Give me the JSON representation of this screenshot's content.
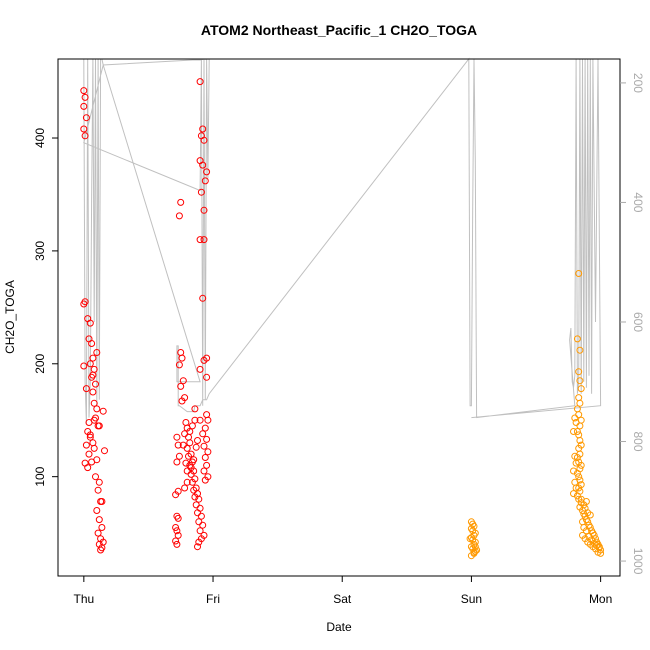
{
  "chart_data": {
    "type": "scatter",
    "title": "ATOM2 Northeast_Pacific_1 CH2O_TOGA",
    "xlabel": "Date",
    "ylabel": "CH2O_TOGA",
    "x_ticks": [
      "Thu",
      "Fri",
      "Sat",
      "Sun",
      "Mon"
    ],
    "xlim": [
      -0.2,
      4.15
    ],
    "ylim": [
      12,
      470
    ],
    "y_ticks": [
      100,
      200,
      300,
      400
    ],
    "y2_ticks": [
      200,
      400,
      600,
      800,
      1000
    ],
    "y2lim": [
      1025,
      160
    ],
    "grid": false,
    "legend": "none",
    "colors": {
      "series1": "#ff0000",
      "series2": "#ff9900",
      "pressure_line": "#c0c0c0",
      "axis": "#000000",
      "right_axis": "#aaaaaa"
    },
    "series": [
      {
        "values": [
          [
            0.0,
            442
          ],
          [
            0.01,
            436
          ],
          [
            0.0,
            428
          ],
          [
            0.02,
            418
          ],
          [
            0.0,
            408
          ],
          [
            0.01,
            402
          ],
          [
            0.0,
            253
          ],
          [
            0.01,
            255
          ],
          [
            0.03,
            240
          ],
          [
            0.05,
            236
          ],
          [
            0.04,
            222
          ],
          [
            0.06,
            218
          ],
          [
            0.07,
            205
          ],
          [
            0.05,
            200
          ],
          [
            0.08,
            195
          ],
          [
            0.06,
            188
          ],
          [
            0.09,
            182
          ],
          [
            0.07,
            175
          ],
          [
            0.08,
            165
          ],
          [
            0.1,
            160
          ],
          [
            0.09,
            152
          ],
          [
            0.11,
            145
          ],
          [
            0.03,
            140
          ],
          [
            0.05,
            135
          ],
          [
            0.07,
            130
          ],
          [
            0.02,
            128
          ],
          [
            0.08,
            125
          ],
          [
            0.04,
            120
          ],
          [
            0.1,
            115
          ],
          [
            0.06,
            113
          ],
          [
            0.03,
            108
          ],
          [
            0.09,
            100
          ],
          [
            0.12,
            95
          ],
          [
            0.11,
            88
          ],
          [
            0.13,
            78
          ],
          [
            0.1,
            70
          ],
          [
            0.12,
            62
          ],
          [
            0.14,
            55
          ],
          [
            0.11,
            50
          ],
          [
            0.13,
            45
          ],
          [
            0.12,
            40
          ],
          [
            0.14,
            37
          ],
          [
            0.13,
            35
          ],
          [
            0.15,
            42
          ],
          [
            0.14,
            78
          ],
          [
            0.16,
            123
          ],
          [
            0.15,
            158
          ],
          [
            0.12,
            145
          ],
          [
            0.0,
            198
          ],
          [
            0.02,
            178
          ],
          [
            0.08,
            150
          ],
          [
            0.05,
            137
          ],
          [
            0.1,
            210
          ],
          [
            0.07,
            190
          ],
          [
            0.01,
            112
          ],
          [
            0.04,
            148
          ],
          [
            0.9,
            450
          ],
          [
            0.92,
            408
          ],
          [
            0.91,
            402
          ],
          [
            0.93,
            398
          ],
          [
            0.9,
            380
          ],
          [
            0.92,
            376
          ],
          [
            0.95,
            370
          ],
          [
            0.94,
            362
          ],
          [
            0.91,
            352
          ],
          [
            0.93,
            336
          ],
          [
            0.75,
            343
          ],
          [
            0.74,
            331
          ],
          [
            0.9,
            310
          ],
          [
            0.93,
            310
          ],
          [
            0.92,
            258
          ],
          [
            0.95,
            205
          ],
          [
            0.93,
            203
          ],
          [
            0.9,
            195
          ],
          [
            0.95,
            188
          ],
          [
            0.75,
            210
          ],
          [
            0.76,
            205
          ],
          [
            0.74,
            199
          ],
          [
            0.77,
            185
          ],
          [
            0.75,
            180
          ],
          [
            0.78,
            170
          ],
          [
            0.76,
            167
          ],
          [
            0.79,
            148
          ],
          [
            0.8,
            143
          ],
          [
            0.78,
            138
          ],
          [
            0.81,
            135
          ],
          [
            0.82,
            130
          ],
          [
            0.8,
            125
          ],
          [
            0.83,
            120
          ],
          [
            0.81,
            118
          ],
          [
            0.84,
            113
          ],
          [
            0.82,
            110
          ],
          [
            0.85,
            105
          ],
          [
            0.83,
            102
          ],
          [
            0.86,
            98
          ],
          [
            0.84,
            95
          ],
          [
            0.87,
            90
          ],
          [
            0.85,
            88
          ],
          [
            0.88,
            85
          ],
          [
            0.86,
            82
          ],
          [
            0.89,
            80
          ],
          [
            0.87,
            75
          ],
          [
            0.9,
            72
          ],
          [
            0.88,
            68
          ],
          [
            0.91,
            65
          ],
          [
            0.89,
            60
          ],
          [
            0.92,
            57
          ],
          [
            0.9,
            52
          ],
          [
            0.93,
            48
          ],
          [
            0.91,
            45
          ],
          [
            0.94,
            143
          ],
          [
            0.92,
            138
          ],
          [
            0.95,
            133
          ],
          [
            0.93,
            127
          ],
          [
            0.96,
            122
          ],
          [
            0.94,
            117
          ],
          [
            0.95,
            110
          ],
          [
            0.93,
            105
          ],
          [
            0.96,
            100
          ],
          [
            0.94,
            97
          ],
          [
            0.95,
            155
          ],
          [
            0.96,
            150
          ],
          [
            0.9,
            150
          ],
          [
            0.72,
            135
          ],
          [
            0.73,
            128
          ],
          [
            0.74,
            118
          ],
          [
            0.72,
            113
          ],
          [
            0.73,
            87
          ],
          [
            0.71,
            84
          ],
          [
            0.72,
            65
          ],
          [
            0.73,
            63
          ],
          [
            0.71,
            55
          ],
          [
            0.72,
            52
          ],
          [
            0.73,
            48
          ],
          [
            0.71,
            43
          ],
          [
            0.72,
            40
          ],
          [
            0.89,
            42
          ],
          [
            0.88,
            38
          ],
          [
            0.86,
            150
          ],
          [
            0.84,
            145
          ],
          [
            0.82,
            140
          ],
          [
            0.8,
            95
          ],
          [
            0.78,
            90
          ],
          [
            0.87,
            126
          ],
          [
            0.85,
            115
          ],
          [
            0.83,
            108
          ],
          [
            0.88,
            132
          ],
          [
            0.86,
            160
          ],
          [
            0.8,
            105
          ],
          [
            0.77,
            128
          ],
          [
            0.79,
            112
          ]
        ]
      },
      {
        "values": [
          [
            3.0,
            60
          ],
          [
            3.01,
            58
          ],
          [
            3.02,
            56
          ],
          [
            3.0,
            54
          ],
          [
            3.01,
            52
          ],
          [
            3.03,
            50
          ],
          [
            3.02,
            48
          ],
          [
            3.0,
            46
          ],
          [
            3.01,
            44
          ],
          [
            3.03,
            42
          ],
          [
            3.02,
            40
          ],
          [
            3.0,
            38
          ],
          [
            3.01,
            36
          ],
          [
            3.03,
            34
          ],
          [
            3.02,
            32
          ],
          [
            3.0,
            30
          ],
          [
            3.02,
            33
          ],
          [
            3.03,
            38
          ],
          [
            3.04,
            35
          ],
          [
            2.99,
            45
          ],
          [
            3.83,
            280
          ],
          [
            3.82,
            222
          ],
          [
            3.84,
            212
          ],
          [
            3.83,
            193
          ],
          [
            3.84,
            185
          ],
          [
            3.85,
            178
          ],
          [
            3.83,
            170
          ],
          [
            3.84,
            165
          ],
          [
            3.82,
            160
          ],
          [
            3.83,
            155
          ],
          [
            3.85,
            150
          ],
          [
            3.84,
            145
          ],
          [
            3.82,
            140
          ],
          [
            3.83,
            137
          ],
          [
            3.84,
            132
          ],
          [
            3.85,
            128
          ],
          [
            3.83,
            125
          ],
          [
            3.84,
            120
          ],
          [
            3.82,
            117
          ],
          [
            3.83,
            113
          ],
          [
            3.85,
            110
          ],
          [
            3.84,
            107
          ],
          [
            3.82,
            103
          ],
          [
            3.83,
            100
          ],
          [
            3.84,
            97
          ],
          [
            3.85,
            93
          ],
          [
            3.83,
            90
          ],
          [
            3.84,
            87
          ],
          [
            3.82,
            83
          ],
          [
            3.83,
            80
          ],
          [
            3.85,
            77
          ],
          [
            3.84,
            73
          ],
          [
            3.86,
            70
          ],
          [
            3.87,
            67
          ],
          [
            3.88,
            65
          ],
          [
            3.89,
            62
          ],
          [
            3.9,
            60
          ],
          [
            3.91,
            57
          ],
          [
            3.92,
            55
          ],
          [
            3.93,
            52
          ],
          [
            3.94,
            50
          ],
          [
            3.95,
            48
          ],
          [
            3.96,
            45
          ],
          [
            3.97,
            42
          ],
          [
            3.98,
            40
          ],
          [
            3.99,
            38
          ],
          [
            4.0,
            35
          ],
          [
            4.0,
            32
          ],
          [
            3.8,
            152
          ],
          [
            3.81,
            148
          ],
          [
            3.79,
            140
          ],
          [
            3.8,
            118
          ],
          [
            3.81,
            112
          ],
          [
            3.79,
            105
          ],
          [
            3.8,
            95
          ],
          [
            3.81,
            90
          ],
          [
            3.79,
            85
          ],
          [
            3.86,
            48
          ],
          [
            3.88,
            45
          ],
          [
            3.9,
            42
          ],
          [
            3.92,
            40
          ],
          [
            3.94,
            38
          ],
          [
            3.96,
            36
          ],
          [
            3.98,
            33
          ],
          [
            3.87,
            55
          ],
          [
            3.89,
            52
          ],
          [
            3.91,
            47
          ],
          [
            3.93,
            44
          ],
          [
            3.95,
            41
          ],
          [
            3.97,
            39
          ],
          [
            3.99,
            37
          ],
          [
            3.86,
            60
          ],
          [
            3.88,
            72
          ],
          [
            3.9,
            68
          ],
          [
            3.92,
            66
          ],
          [
            3.85,
            80
          ],
          [
            3.87,
            75
          ],
          [
            3.89,
            78
          ]
        ]
      }
    ],
    "pressure_line": [
      [
        0.0,
        160
      ],
      [
        0.01,
        700
      ],
      [
        0.02,
        770
      ],
      [
        0.03,
        160
      ],
      [
        0.04,
        760
      ],
      [
        0.05,
        700
      ],
      [
        0.06,
        400
      ],
      [
        0.07,
        160
      ],
      [
        0.08,
        600
      ],
      [
        0.09,
        160
      ],
      [
        0.1,
        740
      ],
      [
        0.11,
        160
      ],
      [
        0.12,
        730
      ],
      [
        0.13,
        160
      ],
      [
        0.14,
        160
      ],
      [
        0.15,
        170
      ],
      [
        0.0,
        300
      ],
      [
        0.9,
        380
      ],
      [
        0.91,
        160
      ],
      [
        0.92,
        740
      ],
      [
        0.93,
        160
      ],
      [
        0.94,
        730
      ],
      [
        0.95,
        160
      ],
      [
        0.96,
        360
      ],
      [
        0.97,
        160
      ],
      [
        0.98,
        160
      ],
      [
        0.15,
        170
      ],
      [
        0.9,
        700
      ],
      [
        0.72,
        700
      ],
      [
        0.72,
        640
      ],
      [
        0.73,
        640
      ],
      [
        0.73,
        740
      ],
      [
        0.74,
        740
      ],
      [
        0.8,
        750
      ],
      [
        0.85,
        750
      ],
      [
        0.86,
        740
      ],
      [
        0.9,
        740
      ],
      [
        0.92,
        730
      ],
      [
        0.95,
        730
      ],
      [
        0.97,
        720
      ],
      [
        2.98,
        160
      ],
      [
        2.99,
        740
      ],
      [
        3.0,
        740
      ],
      [
        3.01,
        410
      ],
      [
        3.02,
        160
      ],
      [
        3.03,
        330
      ],
      [
        3.04,
        760
      ],
      [
        3.8,
        740
      ],
      [
        3.76,
        630
      ],
      [
        3.77,
        610
      ],
      [
        3.78,
        700
      ],
      [
        3.79,
        710
      ],
      [
        3.8,
        690
      ],
      [
        3.81,
        160
      ],
      [
        3.82,
        720
      ],
      [
        3.83,
        700
      ],
      [
        3.84,
        160
      ],
      [
        3.85,
        720
      ],
      [
        3.86,
        160
      ],
      [
        3.87,
        700
      ],
      [
        3.88,
        160
      ],
      [
        3.89,
        710
      ],
      [
        3.9,
        160
      ],
      [
        3.91,
        690
      ],
      [
        3.92,
        160
      ],
      [
        3.93,
        720
      ],
      [
        3.94,
        160
      ],
      [
        3.96,
        600
      ],
      [
        3.98,
        160
      ],
      [
        4.0,
        740
      ],
      [
        3.0,
        760
      ]
    ]
  }
}
